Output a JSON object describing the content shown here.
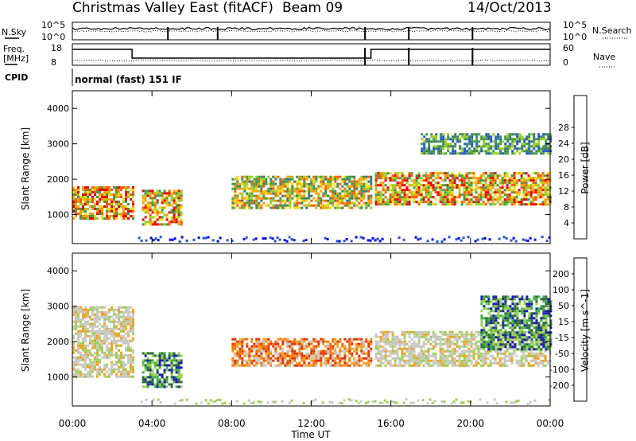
{
  "header": {
    "title": "Christmas Valley East (fitACF)",
    "beam": "Beam 09",
    "date": "14/Oct/2013"
  },
  "strip_panels": {
    "nsky_label": "N.Sky",
    "nsearch_label": "N.Search",
    "noise_ticks_left": [
      "10^5",
      "10^0"
    ],
    "noise_ticks_right": [
      "10^5",
      "10^0"
    ],
    "freq_label_1": "Freq.",
    "freq_label_2": "[MHz]",
    "freq_ticks": [
      "18",
      "8"
    ],
    "nave_label": "Nave",
    "nave_ticks": [
      "60",
      "0"
    ],
    "cpid_label": "CPID",
    "cpid_text": "normal (fast) 151 IF"
  },
  "chart_data": [
    {
      "type": "heatmap",
      "name": "power",
      "ylabel": "Slant Range [km]",
      "y_ticks": [
        "1000",
        "2000",
        "3000",
        "4000"
      ],
      "ylim": [
        180,
        4500
      ],
      "xlim_hours": [
        0,
        24
      ],
      "colorbar_label": "Power [dB]",
      "colorbar_ticks": [
        "4",
        "8",
        "12",
        "16",
        "20",
        "24",
        "28"
      ],
      "colorbar_colors": [
        "#0000ee",
        "#2255cc",
        "#3a7a66",
        "#3f9a4a",
        "#9acd22",
        "#f0dd10",
        "#ffa000",
        "#ff5a00",
        "#e60000"
      ],
      "features": [
        {
          "t0": 0.0,
          "t1": 3.0,
          "r0": 900,
          "r1": 1800,
          "level": "high"
        },
        {
          "t0": 3.5,
          "t1": 5.5,
          "r0": 700,
          "r1": 1700,
          "level": "high"
        },
        {
          "t0": 8.0,
          "t1": 15.0,
          "r0": 1200,
          "r1": 2100,
          "level": "medium"
        },
        {
          "t0": 15.2,
          "t1": 24.0,
          "r0": 1300,
          "r1": 2200,
          "level": "high"
        },
        {
          "t0": 17.5,
          "t1": 24.0,
          "r0": 2700,
          "r1": 3300,
          "level": "low"
        }
      ]
    },
    {
      "type": "heatmap",
      "name": "velocity",
      "ylabel": "Slant Range [km]",
      "y_ticks": [
        "1000",
        "2000",
        "3000",
        "4000"
      ],
      "ylim": [
        180,
        4500
      ],
      "xlim_hours": [
        0,
        24
      ],
      "colorbar_label": "Velocity [m s^-1]",
      "colorbar_ticks": [
        "200",
        "100",
        "50",
        "15",
        "-15",
        "-50",
        "-100",
        "-200"
      ],
      "colorbar_colors": [
        "#1a1ab0",
        "#2a6a3a",
        "#40b040",
        "#9ad050",
        "#c8c8c0",
        "#f0a020",
        "#ff7000",
        "#e03000",
        "#e00000"
      ],
      "features": [
        {
          "t0": 0.0,
          "t1": 3.0,
          "r0": 1000,
          "r1": 3000,
          "velocity": "near zero"
        },
        {
          "t0": 3.5,
          "t1": 5.5,
          "r0": 700,
          "r1": 1700,
          "velocity": "positive"
        },
        {
          "t0": 8.0,
          "t1": 15.0,
          "r0": 1300,
          "r1": 2100,
          "velocity": "negative"
        },
        {
          "t0": 15.2,
          "t1": 24.0,
          "r0": 1300,
          "r1": 2300,
          "velocity": "near zero"
        },
        {
          "t0": 20.5,
          "t1": 24.0,
          "r0": 1800,
          "r1": 3300,
          "velocity": "positive"
        }
      ]
    }
  ],
  "x_axis": {
    "ticks": [
      "00:00",
      "04:00",
      "08:00",
      "12:00",
      "16:00",
      "20:00",
      "00:00"
    ],
    "label": "Time UT"
  }
}
